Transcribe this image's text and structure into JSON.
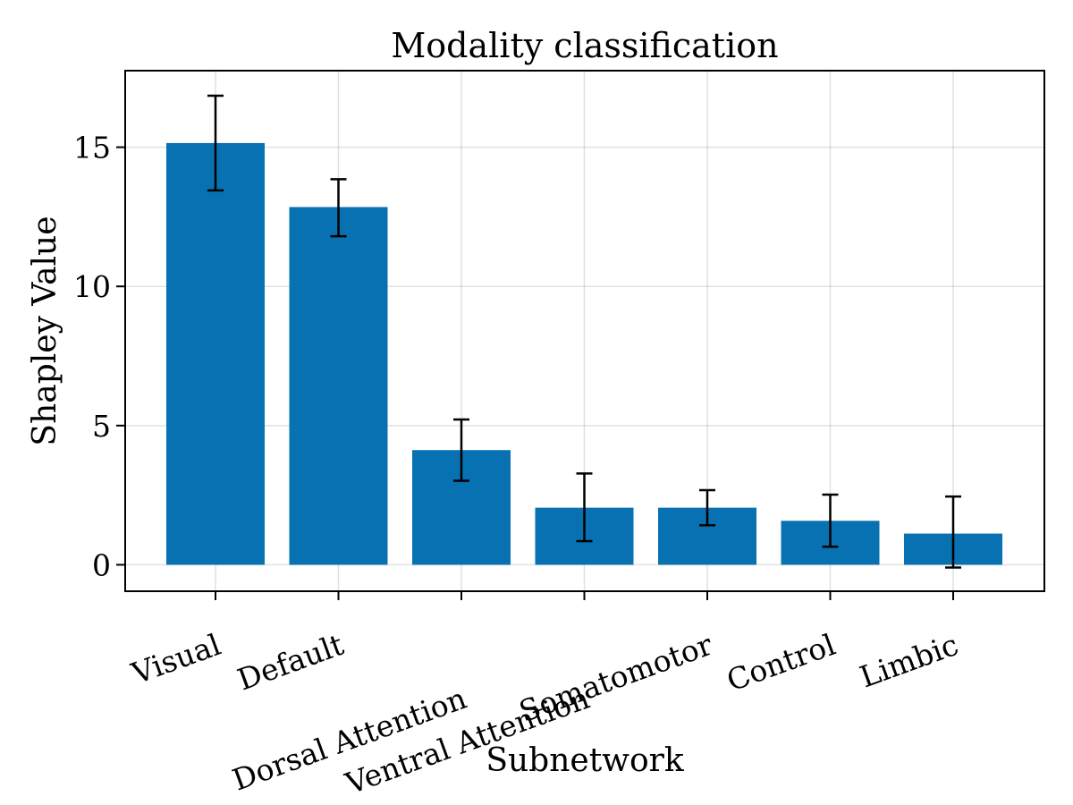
{
  "chart_data": {
    "type": "bar",
    "title": "Modality classification",
    "xlabel": "Subnetwork",
    "ylabel": "Shapley Value",
    "categories": [
      "Visual",
      "Default",
      "Dorsal Attention",
      "Ventral Attention",
      "Somatomotor",
      "Control",
      "Limbic"
    ],
    "values": [
      15.15,
      12.85,
      4.12,
      2.05,
      2.05,
      1.58,
      1.12
    ],
    "error_low": [
      13.45,
      11.8,
      3.02,
      0.85,
      1.42,
      0.65,
      -0.1
    ],
    "error_high": [
      16.85,
      13.85,
      5.22,
      3.28,
      2.68,
      2.52,
      2.45
    ],
    "ylim": [
      -0.95,
      17.75
    ],
    "yticks": [
      0,
      5,
      10,
      15
    ],
    "ytick_labels": [
      "0",
      "5",
      "10",
      "15"
    ],
    "grid": true,
    "bar_color": "#0871b2"
  }
}
